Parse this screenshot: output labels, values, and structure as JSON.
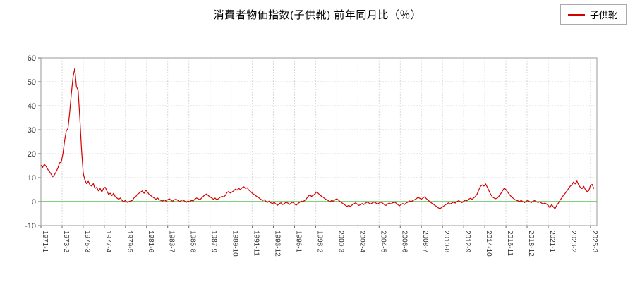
{
  "header": {
    "title": "消費者物価指数(子供靴) 前年同月比（％）"
  },
  "legend": {
    "label": "子供靴",
    "color": "#d40000"
  },
  "colors": {
    "series": "#d40000",
    "zero_line": "#33b333",
    "grid": "#d9d9d9",
    "border": "#999999",
    "tick_text": "#333333"
  },
  "chart_data": {
    "type": "line",
    "title": "消費者物価指数(子供靴) 前年同月比（％）",
    "ylabel": "",
    "xlabel": "",
    "ylim": [
      -10,
      60
    ],
    "y_ticks": [
      -10,
      0,
      10,
      20,
      30,
      40,
      50,
      60
    ],
    "grid": true,
    "legend_position": "top-right",
    "zero_line_color": "#33b333",
    "x_tick_labels": [
      "1971-1",
      "1973-2",
      "1975-3",
      "1977-4",
      "1979-5",
      "1981-6",
      "1983-7",
      "1985-8",
      "1987-9",
      "1989-10",
      "1991-11",
      "1993-12",
      "1996-1",
      "1998-2",
      "2000-3",
      "2002-4",
      "2004-5",
      "2006-6",
      "2008-7",
      "2010-8",
      "2012-9",
      "2014-10",
      "2016-11",
      "2018-12",
      "2021-1",
      "2023-2",
      "2025-3"
    ],
    "series": [
      {
        "name": "子供靴",
        "color": "#d40000",
        "start": "1971-1",
        "interval_months": 2,
        "values": [
          15.2,
          14.3,
          15.6,
          14.8,
          13.5,
          12.6,
          11.5,
          10.4,
          11.2,
          12.5,
          14.0,
          16.2,
          16.5,
          20.0,
          25.5,
          29.5,
          30.5,
          37.0,
          45.0,
          52.0,
          55.5,
          48.0,
          46.5,
          35.0,
          22.0,
          12.0,
          9.0,
          7.5,
          8.5,
          7.0,
          6.5,
          7.5,
          5.5,
          6.0,
          4.5,
          5.5,
          4.0,
          5.5,
          6.0,
          4.5,
          3.0,
          3.5,
          2.5,
          3.5,
          2.0,
          1.5,
          1.0,
          1.5,
          0.5,
          0.0,
          0.5,
          -0.3,
          0.0,
          0.3,
          0.5,
          1.5,
          2.0,
          3.0,
          3.5,
          4.0,
          4.5,
          3.5,
          4.8,
          4.0,
          3.0,
          2.5,
          2.0,
          1.5,
          1.0,
          1.5,
          0.8,
          0.5,
          0.3,
          0.8,
          0.2,
          0.8,
          1.2,
          0.5,
          0.2,
          0.8,
          1.0,
          0.5,
          0.0,
          0.5,
          0.8,
          0.2,
          -0.3,
          0.3,
          0.0,
          0.5,
          0.3,
          1.0,
          1.5,
          1.2,
          0.8,
          1.5,
          2.2,
          2.8,
          3.2,
          2.5,
          2.0,
          1.5,
          1.0,
          1.5,
          0.8,
          1.2,
          1.8,
          2.2,
          2.0,
          2.5,
          3.8,
          4.2,
          3.6,
          4.0,
          4.5,
          5.2,
          4.8,
          5.5,
          5.0,
          5.8,
          6.2,
          5.5,
          5.8,
          4.8,
          4.2,
          3.5,
          3.0,
          2.5,
          2.0,
          1.5,
          1.0,
          0.5,
          0.8,
          0.2,
          -0.3,
          0.2,
          -0.5,
          -0.8,
          -0.3,
          -1.0,
          -1.5,
          -0.8,
          -0.5,
          -1.2,
          -0.8,
          -0.2,
          -0.6,
          -1.2,
          -0.6,
          -0.2,
          -1.0,
          -1.5,
          -0.8,
          -0.3,
          0.2,
          0.0,
          0.5,
          1.2,
          2.2,
          2.8,
          2.2,
          2.6,
          3.2,
          4.0,
          3.5,
          2.8,
          2.2,
          1.8,
          1.2,
          0.8,
          0.4,
          0.0,
          0.5,
          0.2,
          0.8,
          1.2,
          0.6,
          0.0,
          -0.5,
          -1.0,
          -1.5,
          -2.0,
          -1.6,
          -2.0,
          -1.4,
          -1.0,
          -0.5,
          -1.0,
          -1.6,
          -1.2,
          -0.8,
          -1.2,
          -0.6,
          -0.2,
          -0.6,
          -1.0,
          -0.5,
          -0.2,
          -0.5,
          -1.0,
          -0.6,
          -0.2,
          -0.6,
          -1.2,
          -1.6,
          -1.0,
          -0.6,
          -1.0,
          -0.5,
          -0.2,
          -0.6,
          -1.2,
          -1.8,
          -1.2,
          -0.8,
          -1.2,
          -0.6,
          -0.2,
          0.3,
          0.0,
          0.5,
          0.8,
          1.2,
          1.8,
          1.4,
          1.0,
          1.6,
          2.0,
          1.2,
          0.6,
          0.0,
          -0.6,
          -1.0,
          -1.6,
          -2.0,
          -2.6,
          -3.0,
          -2.4,
          -2.0,
          -1.4,
          -1.0,
          -0.5,
          -1.0,
          -0.6,
          -0.2,
          -0.6,
          0.0,
          0.4,
          0.0,
          -0.4,
          0.2,
          0.6,
          0.4,
          1.0,
          1.4,
          1.0,
          1.6,
          2.2,
          3.2,
          5.0,
          6.4,
          7.0,
          6.5,
          7.4,
          6.0,
          4.5,
          3.0,
          2.0,
          1.5,
          1.2,
          1.6,
          2.4,
          3.4,
          4.6,
          5.6,
          5.0,
          4.0,
          3.0,
          2.2,
          1.6,
          1.0,
          0.6,
          0.4,
          0.0,
          0.5,
          0.0,
          -0.4,
          0.2,
          0.5,
          0.0,
          -0.4,
          0.2,
          0.4,
          0.0,
          -0.4,
          0.0,
          -0.6,
          -1.0,
          -0.6,
          -1.0,
          -1.6,
          -2.6,
          -1.2,
          -2.2,
          -3.0,
          -1.6,
          -0.6,
          0.6,
          1.6,
          2.6,
          3.4,
          4.4,
          5.4,
          6.4,
          7.0,
          8.2,
          7.4,
          8.6,
          7.0,
          6.0,
          5.4,
          6.4,
          5.0,
          4.2,
          4.6,
          6.8,
          7.2,
          5.4
        ]
      }
    ]
  }
}
